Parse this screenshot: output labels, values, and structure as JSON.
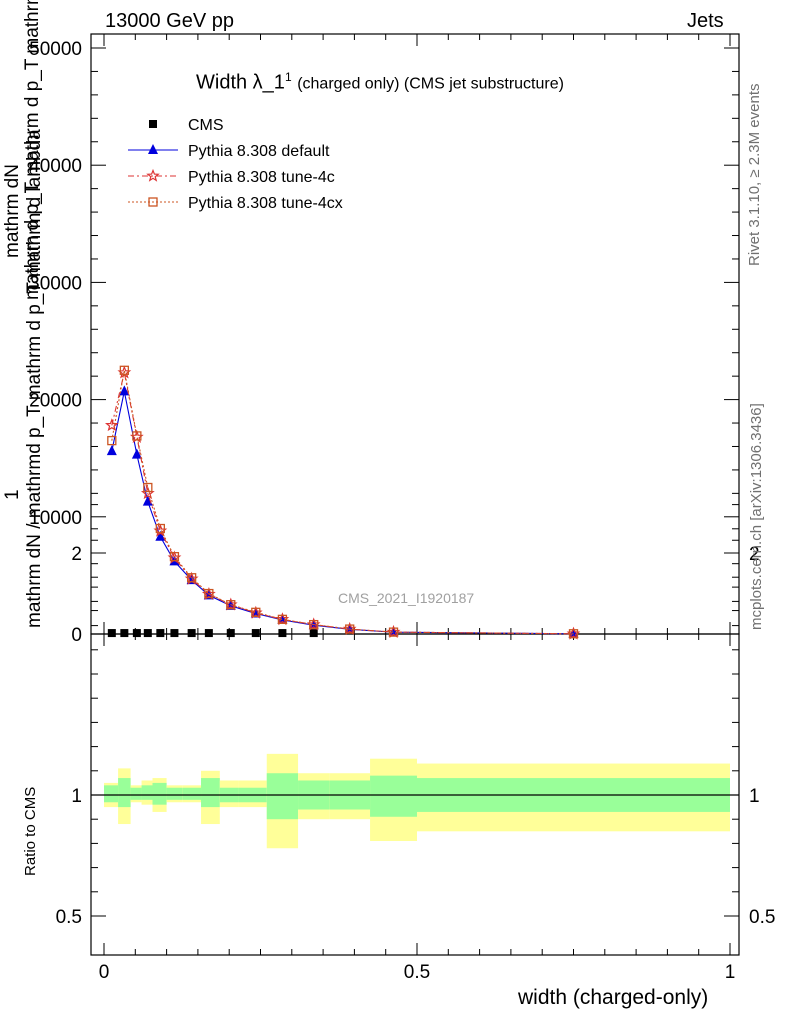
{
  "header": {
    "energy_label": "13000 GeV pp",
    "jets_label": "Jets"
  },
  "side_labels": {
    "rivet": "Rivet 3.1.10, ≥ 2.3M events",
    "mcplots": "mcplots.cern.ch [arXiv:1306.3436]"
  },
  "main_plot": {
    "title_main": "Width λ_1",
    "title_sup": "1",
    "title_sub": "(charged only) (CMS jet substructure)",
    "watermark": "CMS_2021_I1920187",
    "ylabel_numerator": "mathrm d²N",
    "ylabel_num_text": "1",
    "ylabel_lines": [
      "mathrm d N / mathrmd p_T mathrm d p_T mathrm d lambda"
    ],
    "ylabel_line1": "mathrm dN",
    "ylabel_line2": "mathrm d p_T mathrm d p_T mathrm d lambda",
    "ylabel_line3": "1",
    "ylabel_line4": "mathrm dN / mathrmd p_T mathrm d p_T mathrm d lambda"
  },
  "ratio_plot": {
    "ylabel": "Ratio to CMS",
    "xlabel": "width (charged-only)"
  },
  "legend": [
    {
      "name": "CMS",
      "color": "#000000",
      "marker": "square"
    },
    {
      "name": "Pythia 8.308 default",
      "color": "#0000dd",
      "marker": "triangle"
    },
    {
      "name": "Pythia 8.308 tune-4c",
      "color": "#dd3333",
      "marker": "star"
    },
    {
      "name": "Pythia 8.308 tune-4cx",
      "color": "#cc5522",
      "marker": "open-square"
    }
  ],
  "chart_data": {
    "type": "line",
    "xlabel": "width (charged-only)",
    "xlim": [
      -0.02,
      1.0
    ],
    "ylim": [
      0,
      51000
    ],
    "ratio_ylim": [
      0.4,
      2.3
    ],
    "x_ticks": [
      "0",
      "0.5",
      "1"
    ],
    "y_ticks": [
      "0",
      "10000",
      "20000",
      "30000",
      "40000",
      "50000"
    ],
    "ratio_ticks": [
      "0.5",
      "1",
      "2"
    ],
    "x": [
      0.0125,
      0.0325,
      0.0525,
      0.07,
      0.09,
      0.1125,
      0.14,
      0.1675,
      0.2025,
      0.2425,
      0.285,
      0.335,
      0.3925,
      0.4625,
      0.75
    ],
    "series": [
      {
        "name": "CMS",
        "values": [
          80,
          80,
          80,
          80,
          80,
          80,
          80,
          80,
          80,
          80,
          80,
          80,
          0,
          0,
          0
        ]
      },
      {
        "name": "Pythia 8.308 default",
        "values": [
          15600,
          20700,
          15300,
          11300,
          8300,
          6200,
          4600,
          3300,
          2400,
          1750,
          1200,
          750,
          400,
          150,
          20
        ]
      },
      {
        "name": "Pythia 8.308 tune-4c",
        "values": [
          17800,
          22300,
          16800,
          12000,
          8800,
          6500,
          4700,
          3400,
          2500,
          1800,
          1250,
          800,
          420,
          160,
          20
        ]
      },
      {
        "name": "Pythia 8.308 tune-4cx",
        "values": [
          16500,
          22500,
          16900,
          12500,
          9000,
          6600,
          4800,
          3450,
          2500,
          1850,
          1250,
          800,
          420,
          160,
          20
        ]
      }
    ],
    "ratio_bands": {
      "bins": [
        [
          0.0,
          0.0225
        ],
        [
          0.0225,
          0.0425
        ],
        [
          0.0425,
          0.06
        ],
        [
          0.06,
          0.0775
        ],
        [
          0.0775,
          0.1
        ],
        [
          0.1,
          0.125
        ],
        [
          0.125,
          0.155
        ],
        [
          0.155,
          0.185
        ],
        [
          0.185,
          0.215
        ],
        [
          0.215,
          0.26
        ],
        [
          0.26,
          0.31
        ],
        [
          0.31,
          0.36
        ],
        [
          0.36,
          0.425
        ],
        [
          0.425,
          0.5
        ],
        [
          0.5,
          1.0
        ]
      ],
      "inner": [
        [
          0.97,
          1.04
        ],
        [
          0.95,
          1.07
        ],
        [
          0.98,
          1.03
        ],
        [
          0.98,
          1.04
        ],
        [
          0.96,
          1.05
        ],
        [
          0.98,
          1.03
        ],
        [
          0.98,
          1.03
        ],
        [
          0.95,
          1.07
        ],
        [
          0.97,
          1.03
        ],
        [
          0.97,
          1.03
        ],
        [
          0.9,
          1.09
        ],
        [
          0.94,
          1.06
        ],
        [
          0.94,
          1.06
        ],
        [
          0.91,
          1.08
        ],
        [
          0.93,
          1.07
        ]
      ],
      "outer": [
        [
          0.95,
          1.05
        ],
        [
          0.88,
          1.11
        ],
        [
          0.97,
          1.04
        ],
        [
          0.96,
          1.06
        ],
        [
          0.93,
          1.07
        ],
        [
          0.97,
          1.04
        ],
        [
          0.97,
          1.04
        ],
        [
          0.88,
          1.1
        ],
        [
          0.95,
          1.06
        ],
        [
          0.95,
          1.06
        ],
        [
          0.78,
          1.17
        ],
        [
          0.9,
          1.09
        ],
        [
          0.9,
          1.09
        ],
        [
          0.81,
          1.15
        ],
        [
          0.85,
          1.13
        ]
      ]
    }
  }
}
